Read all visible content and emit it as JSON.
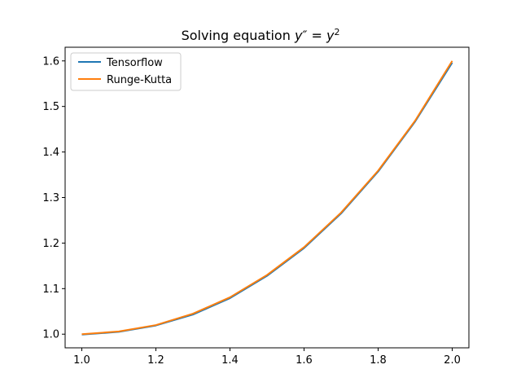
{
  "chart_data": {
    "type": "line",
    "title_prefix": "Solving equation ",
    "title_math": "y″ = y",
    "title_exp": "2",
    "xlabel": "",
    "ylabel": "",
    "xlim": [
      0.955,
      2.045
    ],
    "ylim": [
      0.97,
      1.63
    ],
    "xticks": [
      1.0,
      1.2,
      1.4,
      1.6,
      1.8,
      2.0
    ],
    "xtick_labels": [
      "1.0",
      "1.2",
      "1.4",
      "1.6",
      "1.8",
      "2.0"
    ],
    "yticks": [
      1.0,
      1.1,
      1.2,
      1.3,
      1.4,
      1.5,
      1.6
    ],
    "ytick_labels": [
      "1.0",
      "1.1",
      "1.2",
      "1.3",
      "1.4",
      "1.5",
      "1.6"
    ],
    "grid": false,
    "legend_position": "top-left",
    "series": [
      {
        "name": "Tensorflow",
        "color": "#1f77b4",
        "x": [
          1.0,
          1.1,
          1.2,
          1.3,
          1.4,
          1.5,
          1.6,
          1.7,
          1.8,
          1.9,
          2.0
        ],
        "y": [
          0.999,
          1.005,
          1.019,
          1.043,
          1.079,
          1.128,
          1.189,
          1.265,
          1.357,
          1.467,
          1.596
        ]
      },
      {
        "name": "Runge-Kutta",
        "color": "#ff7f0e",
        "x": [
          1.0,
          1.1,
          1.2,
          1.3,
          1.4,
          1.5,
          1.6,
          1.7,
          1.8,
          1.9,
          2.0
        ],
        "y": [
          1.0,
          1.006,
          1.02,
          1.045,
          1.081,
          1.13,
          1.191,
          1.267,
          1.359,
          1.469,
          1.6
        ]
      }
    ]
  }
}
